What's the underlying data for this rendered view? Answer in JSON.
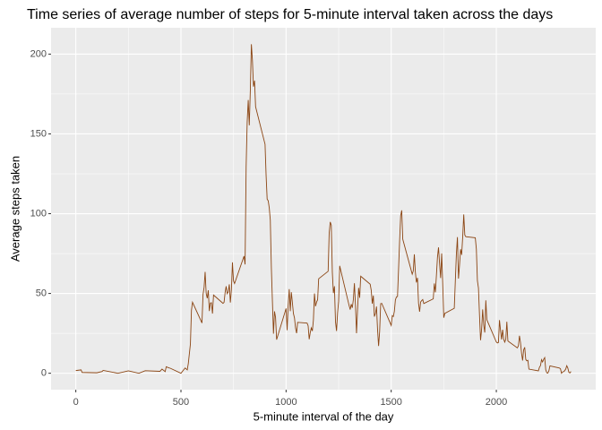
{
  "chart_data": {
    "type": "line",
    "title": "Time series of average number of steps for 5-minute interval taken across the days",
    "x_label": "5-minute interval of the day",
    "y_label": "Average steps taken",
    "color": "#8B4513",
    "grid": true,
    "xlim": [
      -117.75,
      2472.75
    ],
    "ylim": [
      -10.3,
      216.5
    ],
    "xticks": [
      0,
      500,
      1000,
      1500,
      2000
    ],
    "yticks": [
      0,
      50,
      100,
      150,
      200
    ],
    "x": [
      0,
      25,
      30,
      100,
      125,
      130,
      200,
      250,
      300,
      330,
      400,
      410,
      425,
      430,
      440,
      450,
      500,
      520,
      530,
      535,
      545,
      550,
      555,
      600,
      605,
      610,
      615,
      620,
      625,
      630,
      635,
      640,
      645,
      650,
      655,
      700,
      705,
      710,
      715,
      720,
      725,
      730,
      735,
      740,
      745,
      750,
      755,
      800,
      805,
      810,
      815,
      820,
      825,
      830,
      835,
      840,
      845,
      850,
      855,
      900,
      905,
      910,
      915,
      920,
      925,
      930,
      935,
      940,
      945,
      950,
      955,
      1000,
      1005,
      1010,
      1015,
      1020,
      1025,
      1030,
      1035,
      1040,
      1045,
      1050,
      1055,
      1100,
      1105,
      1110,
      1115,
      1120,
      1125,
      1130,
      1135,
      1140,
      1145,
      1150,
      1155,
      1200,
      1205,
      1210,
      1215,
      1220,
      1225,
      1230,
      1235,
      1240,
      1245,
      1250,
      1255,
      1300,
      1305,
      1310,
      1315,
      1320,
      1325,
      1330,
      1335,
      1340,
      1345,
      1350,
      1355,
      1400,
      1405,
      1410,
      1415,
      1420,
      1425,
      1430,
      1435,
      1440,
      1445,
      1450,
      1455,
      1500,
      1505,
      1510,
      1515,
      1520,
      1525,
      1530,
      1535,
      1540,
      1545,
      1550,
      1555,
      1600,
      1605,
      1610,
      1615,
      1620,
      1625,
      1630,
      1635,
      1640,
      1645,
      1650,
      1655,
      1700,
      1705,
      1710,
      1715,
      1720,
      1725,
      1730,
      1735,
      1740,
      1745,
      1750,
      1755,
      1800,
      1805,
      1810,
      1815,
      1820,
      1825,
      1830,
      1835,
      1840,
      1845,
      1850,
      1855,
      1900,
      1905,
      1910,
      1915,
      1920,
      1925,
      1930,
      1935,
      1940,
      1945,
      1950,
      1955,
      2000,
      2005,
      2010,
      2015,
      2020,
      2025,
      2030,
      2035,
      2040,
      2045,
      2050,
      2055,
      2100,
      2105,
      2110,
      2115,
      2120,
      2125,
      2130,
      2135,
      2140,
      2145,
      2150,
      2155,
      2200,
      2205,
      2210,
      2215,
      2220,
      2225,
      2230,
      2235,
      2240,
      2245,
      2250,
      2255,
      2300,
      2305,
      2310,
      2315,
      2320,
      2325,
      2330,
      2335,
      2340,
      2345,
      2350,
      2355
    ],
    "y": [
      1.7,
      2.1,
      0.5,
      0.3,
      1.1,
      1.8,
      0,
      1.5,
      0,
      1.6,
      1.2,
      2.6,
      1.0,
      4.1,
      3.5,
      3.1,
      0,
      3.3,
      2.1,
      6.1,
      18.3,
      39.5,
      44.5,
      31.5,
      49.3,
      53.8,
      63.5,
      50,
      47,
      52,
      39,
      44,
      44.2,
      37.4,
      49,
      43.8,
      44.4,
      50.5,
      54.5,
      49.9,
      51,
      55.7,
      44.3,
      52.3,
      69.5,
      57.8,
      56.2,
      73.4,
      68.2,
      129.4,
      157.5,
      171.2,
      155.4,
      177.3,
      206.2,
      195.9,
      179.6,
      183.4,
      167,
      143.5,
      124,
      109.1,
      108.1,
      103.7,
      96,
      66.2,
      45.2,
      24.8,
      38.8,
      35,
      21.1,
      40.6,
      27,
      42.4,
      52.7,
      38.9,
      50.8,
      44.3,
      37.4,
      34.7,
      28.3,
      25.1,
      31.9,
      31.4,
      29.7,
      21.3,
      25.5,
      28.4,
      26.5,
      33.4,
      50,
      42,
      44.6,
      46,
      59.2,
      63.9,
      87.7,
      94.8,
      92.8,
      63.4,
      50.2,
      54.5,
      32.4,
      26.5,
      37.7,
      45.1,
      67.3,
      42.3,
      39.9,
      43.3,
      41,
      46.2,
      56.4,
      42.8,
      25.1,
      40,
      53.5,
      47.3,
      60.8,
      55.8,
      52,
      43.6,
      48.7,
      35.5,
      37.5,
      41.8,
      27.5,
      17.1,
      26.1,
      43.6,
      43.8,
      30,
      36.1,
      35.5,
      38.8,
      46,
      47.8,
      48.1,
      65.3,
      82.9,
      98.7,
      102.1,
      84,
      62.1,
      64.1,
      74.5,
      63.2,
      56.9,
      59.8,
      43.9,
      38.6,
      44.7,
      45.5,
      46.2,
      43.7,
      46.6,
      56.3,
      50.7,
      61.2,
      72.7,
      78.9,
      68.9,
      59.7,
      75.1,
      56.5,
      34.8,
      37.5,
      40.7,
      58,
      74.7,
      85.3,
      59.3,
      67.8,
      77.7,
      74.2,
      85.3,
      99.5,
      86.6,
      85.6,
      84.9,
      77.8,
      58,
      53.4,
      36.3,
      20.7,
      27.4,
      40,
      30.2,
      25.5,
      45.7,
      33.5,
      19.6,
      19,
      19.3,
      33.3,
      26.8,
      21.2,
      27.3,
      21.3,
      19.5,
      21.3,
      32.3,
      20.2,
      15.9,
      17.2,
      23.5,
      19.2,
      12.5,
      8,
      14.7,
      16.3,
      8.7,
      7.8,
      8.1,
      2.6,
      1.5,
      3.7,
      4.8,
      8.5,
      7.1,
      8.7,
      9.8,
      2.2,
      0.3,
      0.1,
      1.6,
      4.6,
      3.3,
      2.8,
      0,
      0.8,
      1,
      1.6,
      2.6,
      4.7,
      3.3,
      0.6,
      0.2,
      1.1
    ]
  }
}
